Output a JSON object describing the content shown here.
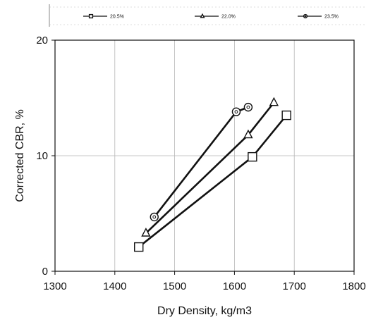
{
  "chart_data": {
    "type": "line",
    "xlabel": "Dry Density, kg/m3",
    "ylabel": "Corrected CBR, %",
    "xlim": [
      1300,
      1800
    ],
    "ylim": [
      0,
      20
    ],
    "xticks": [
      "1300",
      "1400",
      "1500",
      "1600",
      "1700",
      "1800"
    ],
    "yticks": [
      "0",
      "10",
      "20"
    ],
    "grid": "x and y at tick marks",
    "legend_position": "top",
    "series": [
      {
        "name": "20.5%",
        "marker": "square",
        "color": "#111111",
        "x": [
          1440,
          1630,
          1687
        ],
        "y": [
          2.1,
          9.9,
          13.5
        ]
      },
      {
        "name": "22.0%",
        "marker": "triangle",
        "color": "#111111",
        "x": [
          1452,
          1623,
          1666
        ],
        "y": [
          3.3,
          11.8,
          14.6
        ]
      },
      {
        "name": "23.5%",
        "marker": "circle",
        "color": "#111111",
        "x": [
          1466,
          1603,
          1623
        ],
        "y": [
          4.7,
          13.8,
          14.2
        ]
      }
    ]
  }
}
